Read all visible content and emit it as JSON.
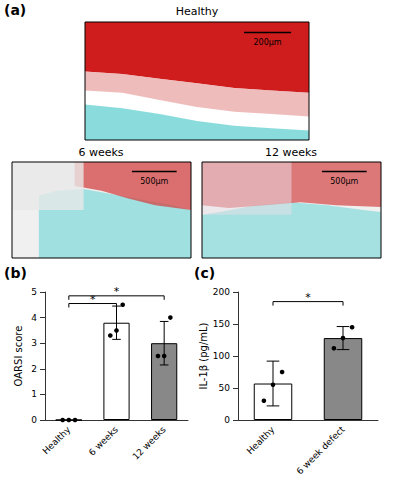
{
  "chart_data": [
    {
      "type": "image",
      "title": "(a)",
      "panels": [
        {
          "title": "Healthy",
          "scale_bar": "200μm",
          "colors": [
            "#ffffff",
            "#cc1111",
            "#e8a0a0",
            "#7dd8d8"
          ]
        },
        {
          "title": "6 weeks",
          "scale_bar": "500μm",
          "colors": [
            "#f0f0f0",
            "#d44444",
            "#7dd8d8",
            "#e8e8e8"
          ]
        },
        {
          "title": "12 weeks",
          "scale_bar": "500μm",
          "colors": [
            "#f0f0f0",
            "#d44444",
            "#7dd8d8",
            "#e8e0e8"
          ]
        }
      ]
    },
    {
      "type": "bar",
      "title": "(b)",
      "categories": [
        "Healthy",
        "6 weeks",
        "12 weeks"
      ],
      "values": [
        0.0,
        3.8,
        3.0
      ],
      "errors": [
        0.0,
        0.65,
        0.85
      ],
      "points": [
        [
          0.0,
          0.0,
          0.0
        ],
        [
          3.3,
          3.5,
          4.5
        ],
        [
          2.5,
          2.5,
          4.0
        ]
      ],
      "colors": [
        "white",
        "white",
        "#888888"
      ],
      "ylabel": "OARSI score",
      "ylim": [
        0,
        5
      ],
      "yticks": [
        0,
        1,
        2,
        3,
        4,
        5
      ],
      "grid": false,
      "annotations": [
        {
          "from": "Healthy",
          "to": "6 weeks",
          "y": 4.55,
          "text": "*"
        },
        {
          "from": "Healthy",
          "to": "12 weeks",
          "y": 4.85,
          "text": "*"
        }
      ]
    },
    {
      "type": "bar",
      "title": "(c)",
      "categories": [
        "Healthy",
        "6 week defect"
      ],
      "values": [
        57.0,
        128.0
      ],
      "errors": [
        35.0,
        18.0
      ],
      "points": [
        [
          30.0,
          55.0,
          75.0
        ],
        [
          112.0,
          128.0,
          145.0
        ]
      ],
      "colors": [
        "white",
        "#888888"
      ],
      "ylabel": "IL-1β (pg/mL)",
      "ylim": [
        0,
        200
      ],
      "yticks": [
        0,
        50,
        100,
        150,
        200
      ],
      "grid": false,
      "annotations": [
        {
          "from": "Healthy",
          "to": "6 week defect",
          "y": 185,
          "text": "*"
        }
      ]
    }
  ]
}
